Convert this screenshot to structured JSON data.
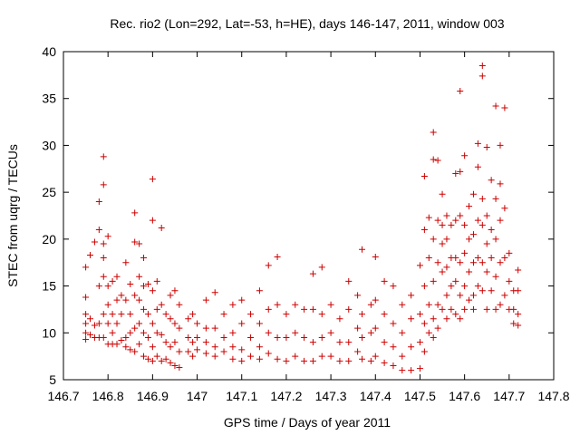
{
  "chart_data": {
    "type": "scatter",
    "title": "Rec. rio2 (Lon=292, Lat=-53, h=HE), days 146-147, 2011, window 003",
    "xlabel": "GPS time / Days of year 2011",
    "ylabel": "STEC from uqrg / TECUs",
    "xlim": [
      146.7,
      147.8
    ],
    "ylim": [
      5,
      40
    ],
    "xticks": [
      "146.7",
      "146.8",
      "146.9",
      "147",
      "147.1",
      "147.2",
      "147.3",
      "147.4",
      "147.5",
      "147.6",
      "147.7",
      "147.8"
    ],
    "yticks": [
      "5",
      "10",
      "15",
      "20",
      "25",
      "30",
      "35",
      "40"
    ],
    "grid": false,
    "legend": "none",
    "marker": "plus",
    "color": "#cc0000",
    "points": [
      [
        146.75,
        17.0
      ],
      [
        146.75,
        13.8
      ],
      [
        146.75,
        12.0
      ],
      [
        146.75,
        11.0
      ],
      [
        146.75,
        10.0
      ],
      [
        146.75,
        9.3
      ],
      [
        146.76,
        18.3
      ],
      [
        146.76,
        11.5
      ],
      [
        146.76,
        9.8
      ],
      [
        146.77,
        19.7
      ],
      [
        146.77,
        10.8
      ],
      [
        146.77,
        9.5
      ],
      [
        146.78,
        24.0
      ],
      [
        146.78,
        21.0
      ],
      [
        146.78,
        15.0
      ],
      [
        146.78,
        11.0
      ],
      [
        146.78,
        9.5
      ],
      [
        146.79,
        28.8
      ],
      [
        146.79,
        25.8
      ],
      [
        146.79,
        19.5
      ],
      [
        146.79,
        18.0
      ],
      [
        146.79,
        16.0
      ],
      [
        146.79,
        12.0
      ],
      [
        146.79,
        9.5
      ],
      [
        146.8,
        20.3
      ],
      [
        146.8,
        15.0
      ],
      [
        146.8,
        13.0
      ],
      [
        146.8,
        11.0
      ],
      [
        146.8,
        8.8
      ],
      [
        146.81,
        15.5
      ],
      [
        146.81,
        12.0
      ],
      [
        146.81,
        10.0
      ],
      [
        146.81,
        8.8
      ],
      [
        146.82,
        16.0
      ],
      [
        146.82,
        13.5
      ],
      [
        146.82,
        11.0
      ],
      [
        146.82,
        8.8
      ],
      [
        146.83,
        14.0
      ],
      [
        146.83,
        12.0
      ],
      [
        146.83,
        9.2
      ],
      [
        146.84,
        17.5
      ],
      [
        146.84,
        13.5
      ],
      [
        146.84,
        9.5
      ],
      [
        146.84,
        8.5
      ],
      [
        146.85,
        15.2
      ],
      [
        146.85,
        12.0
      ],
      [
        146.85,
        10.0
      ],
      [
        146.85,
        8.2
      ],
      [
        146.86,
        22.8
      ],
      [
        146.86,
        19.7
      ],
      [
        146.86,
        14.0
      ],
      [
        146.86,
        10.5
      ],
      [
        146.86,
        8.0
      ],
      [
        146.87,
        19.5
      ],
      [
        146.87,
        16.0
      ],
      [
        146.87,
        13.5
      ],
      [
        146.87,
        11.0
      ],
      [
        146.87,
        8.8
      ],
      [
        146.88,
        18.0
      ],
      [
        146.88,
        15.0
      ],
      [
        146.88,
        12.5
      ],
      [
        146.88,
        10.0
      ],
      [
        146.88,
        7.5
      ],
      [
        146.89,
        15.2
      ],
      [
        146.89,
        12.0
      ],
      [
        146.89,
        9.5
      ],
      [
        146.89,
        7.2
      ],
      [
        146.9,
        26.4
      ],
      [
        146.9,
        22.0
      ],
      [
        146.9,
        14.5
      ],
      [
        146.9,
        11.0
      ],
      [
        146.9,
        8.5
      ],
      [
        146.9,
        7.0
      ],
      [
        146.91,
        15.5
      ],
      [
        146.91,
        12.5
      ],
      [
        146.91,
        10.0
      ],
      [
        146.91,
        7.5
      ],
      [
        146.92,
        21.2
      ],
      [
        146.92,
        13.0
      ],
      [
        146.92,
        9.8
      ],
      [
        146.92,
        7.0
      ],
      [
        146.93,
        12.0
      ],
      [
        146.93,
        9.0
      ],
      [
        146.93,
        7.2
      ],
      [
        146.94,
        14.0
      ],
      [
        146.94,
        11.5
      ],
      [
        146.94,
        8.5
      ],
      [
        146.94,
        6.8
      ],
      [
        146.95,
        14.5
      ],
      [
        146.95,
        11.0
      ],
      [
        146.95,
        9.0
      ],
      [
        146.95,
        6.5
      ],
      [
        146.96,
        13.0
      ],
      [
        146.96,
        10.5
      ],
      [
        146.96,
        8.0
      ],
      [
        146.96,
        6.3
      ],
      [
        146.98,
        11.5
      ],
      [
        146.98,
        9.5
      ],
      [
        146.98,
        8.0
      ],
      [
        146.99,
        12.0
      ],
      [
        146.99,
        9.0
      ],
      [
        146.99,
        7.5
      ],
      [
        147.0,
        11.0
      ],
      [
        147.0,
        9.5
      ],
      [
        147.0,
        8.2
      ],
      [
        147.02,
        13.5
      ],
      [
        147.02,
        10.5
      ],
      [
        147.02,
        9.0
      ],
      [
        147.02,
        7.8
      ],
      [
        147.04,
        14.3
      ],
      [
        147.04,
        10.5
      ],
      [
        147.04,
        8.5
      ],
      [
        147.04,
        7.5
      ],
      [
        147.06,
        12.0
      ],
      [
        147.06,
        9.5
      ],
      [
        147.06,
        8.0
      ],
      [
        147.08,
        13.0
      ],
      [
        147.08,
        10.0
      ],
      [
        147.08,
        8.5
      ],
      [
        147.08,
        7.2
      ],
      [
        147.1,
        13.5
      ],
      [
        147.1,
        11.0
      ],
      [
        147.1,
        8.2
      ],
      [
        147.1,
        7.0
      ],
      [
        147.12,
        12.0
      ],
      [
        147.12,
        9.5
      ],
      [
        147.12,
        7.5
      ],
      [
        147.14,
        14.5
      ],
      [
        147.14,
        11.0
      ],
      [
        147.14,
        8.5
      ],
      [
        147.14,
        7.2
      ],
      [
        147.16,
        17.2
      ],
      [
        147.16,
        12.5
      ],
      [
        147.16,
        10.0
      ],
      [
        147.16,
        7.8
      ],
      [
        147.18,
        18.1
      ],
      [
        147.18,
        13.0
      ],
      [
        147.18,
        9.5
      ],
      [
        147.18,
        7.2
      ],
      [
        147.2,
        12.0
      ],
      [
        147.2,
        9.5
      ],
      [
        147.2,
        7.0
      ],
      [
        147.22,
        13.0
      ],
      [
        147.22,
        10.0
      ],
      [
        147.22,
        7.5
      ],
      [
        147.24,
        12.5
      ],
      [
        147.24,
        9.5
      ],
      [
        147.24,
        7.0
      ],
      [
        147.26,
        16.3
      ],
      [
        147.26,
        12.5
      ],
      [
        147.26,
        9.0
      ],
      [
        147.26,
        7.0
      ],
      [
        147.28,
        17.0
      ],
      [
        147.28,
        12.0
      ],
      [
        147.28,
        9.5
      ],
      [
        147.28,
        7.5
      ],
      [
        147.3,
        13.0
      ],
      [
        147.3,
        10.0
      ],
      [
        147.3,
        7.5
      ],
      [
        147.32,
        11.5
      ],
      [
        147.32,
        9.0
      ],
      [
        147.32,
        7.0
      ],
      [
        147.34,
        15.5
      ],
      [
        147.34,
        12.5
      ],
      [
        147.34,
        9.0
      ],
      [
        147.34,
        7.0
      ],
      [
        147.36,
        14.0
      ],
      [
        147.36,
        10.5
      ],
      [
        147.36,
        8.0
      ],
      [
        147.37,
        18.9
      ],
      [
        147.37,
        12.0
      ],
      [
        147.37,
        9.5
      ],
      [
        147.37,
        7.2
      ],
      [
        147.39,
        13.0
      ],
      [
        147.39,
        10.0
      ],
      [
        147.39,
        7.0
      ],
      [
        147.4,
        18.1
      ],
      [
        147.4,
        13.5
      ],
      [
        147.4,
        10.5
      ],
      [
        147.4,
        7.5
      ],
      [
        147.42,
        15.5
      ],
      [
        147.42,
        12.0
      ],
      [
        147.42,
        9.0
      ],
      [
        147.42,
        6.8
      ],
      [
        147.44,
        15.0
      ],
      [
        147.44,
        11.0
      ],
      [
        147.44,
        8.5
      ],
      [
        147.44,
        6.5
      ],
      [
        147.46,
        13.0
      ],
      [
        147.46,
        10.0
      ],
      [
        147.46,
        7.5
      ],
      [
        147.46,
        6.0
      ],
      [
        147.48,
        14.0
      ],
      [
        147.48,
        11.5
      ],
      [
        147.48,
        8.5
      ],
      [
        147.48,
        6.0
      ],
      [
        147.5,
        17.2
      ],
      [
        147.5,
        12.0
      ],
      [
        147.5,
        9.0
      ],
      [
        147.5,
        6.2
      ],
      [
        147.51,
        26.7
      ],
      [
        147.51,
        21.0
      ],
      [
        147.51,
        15.0
      ],
      [
        147.51,
        11.0
      ],
      [
        147.51,
        8.0
      ],
      [
        147.52,
        22.3
      ],
      [
        147.52,
        18.0
      ],
      [
        147.52,
        13.0
      ],
      [
        147.52,
        10.0
      ],
      [
        147.53,
        31.4
      ],
      [
        147.53,
        28.5
      ],
      [
        147.53,
        20.0
      ],
      [
        147.53,
        15.5
      ],
      [
        147.53,
        11.5
      ],
      [
        147.53,
        9.5
      ],
      [
        147.54,
        28.4
      ],
      [
        147.54,
        22.0
      ],
      [
        147.54,
        17.5
      ],
      [
        147.54,
        13.0
      ],
      [
        147.54,
        10.5
      ],
      [
        147.55,
        24.8
      ],
      [
        147.55,
        21.5
      ],
      [
        147.55,
        19.5
      ],
      [
        147.55,
        16.5
      ],
      [
        147.55,
        12.5
      ],
      [
        147.56,
        22.5
      ],
      [
        147.56,
        20.0
      ],
      [
        147.56,
        17.0
      ],
      [
        147.56,
        14.0
      ],
      [
        147.56,
        11.5
      ],
      [
        147.57,
        21.5
      ],
      [
        147.57,
        18.0
      ],
      [
        147.57,
        15.0
      ],
      [
        147.57,
        12.5
      ],
      [
        147.58,
        27.0
      ],
      [
        147.58,
        22.0
      ],
      [
        147.58,
        18.0
      ],
      [
        147.58,
        15.5
      ],
      [
        147.58,
        12.0
      ],
      [
        147.59,
        35.8
      ],
      [
        147.59,
        27.2
      ],
      [
        147.59,
        22.5
      ],
      [
        147.59,
        17.5
      ],
      [
        147.59,
        14.0
      ],
      [
        147.59,
        11.5
      ],
      [
        147.6,
        28.9
      ],
      [
        147.6,
        21.5
      ],
      [
        147.6,
        18.5
      ],
      [
        147.6,
        15.0
      ],
      [
        147.6,
        12.5
      ],
      [
        147.61,
        23.5
      ],
      [
        147.61,
        20.0
      ],
      [
        147.61,
        16.5
      ],
      [
        147.61,
        13.5
      ],
      [
        147.62,
        24.8
      ],
      [
        147.62,
        20.5
      ],
      [
        147.62,
        17.5
      ],
      [
        147.62,
        14.0
      ],
      [
        147.62,
        12.5
      ],
      [
        147.63,
        30.2
      ],
      [
        147.63,
        27.7
      ],
      [
        147.63,
        22.0
      ],
      [
        147.63,
        18.0
      ],
      [
        147.63,
        15.0
      ],
      [
        147.64,
        38.5
      ],
      [
        147.64,
        37.4
      ],
      [
        147.64,
        24.3
      ],
      [
        147.64,
        21.5
      ],
      [
        147.64,
        17.5
      ],
      [
        147.64,
        14.5
      ],
      [
        147.65,
        29.8
      ],
      [
        147.65,
        22.5
      ],
      [
        147.65,
        19.5
      ],
      [
        147.65,
        16.5
      ],
      [
        147.65,
        12.5
      ],
      [
        147.66,
        26.3
      ],
      [
        147.66,
        21.0
      ],
      [
        147.66,
        18.0
      ],
      [
        147.66,
        14.5
      ],
      [
        147.67,
        34.2
      ],
      [
        147.67,
        24.3
      ],
      [
        147.67,
        20.0
      ],
      [
        147.67,
        16.0
      ],
      [
        147.67,
        12.5
      ],
      [
        147.68,
        30.0
      ],
      [
        147.68,
        25.9
      ],
      [
        147.68,
        22.0
      ],
      [
        147.68,
        17.5
      ],
      [
        147.68,
        13.0
      ],
      [
        147.69,
        34.0
      ],
      [
        147.69,
        23.3
      ],
      [
        147.69,
        18.0
      ],
      [
        147.69,
        14.0
      ],
      [
        147.7,
        18.5
      ],
      [
        147.7,
        15.5
      ],
      [
        147.7,
        12.5
      ],
      [
        147.71,
        14.5
      ],
      [
        147.71,
        12.5
      ],
      [
        147.71,
        11.0
      ],
      [
        147.72,
        16.7
      ],
      [
        147.72,
        14.5
      ],
      [
        147.72,
        12.0
      ],
      [
        147.72,
        10.8
      ]
    ]
  }
}
